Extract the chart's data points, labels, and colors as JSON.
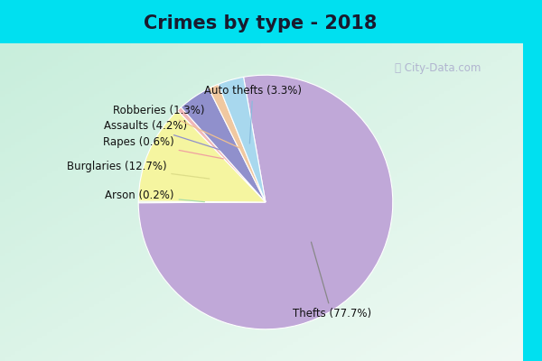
{
  "title": "Crimes by type - 2018",
  "slices": [
    {
      "label": "Thefts",
      "pct": 77.7,
      "color": "#c0a8d8"
    },
    {
      "label": "Burglaries",
      "pct": 12.7,
      "color": "#f5f5a0"
    },
    {
      "label": "Auto thefts",
      "pct": 3.3,
      "color": "#a8d8ee"
    },
    {
      "label": "Assaults",
      "pct": 4.2,
      "color": "#9090cc"
    },
    {
      "label": "Robberies",
      "pct": 1.3,
      "color": "#f0c8a0"
    },
    {
      "label": "Rapes",
      "pct": 0.6,
      "color": "#f0b8b8"
    },
    {
      "label": "Arson",
      "pct": 0.2,
      "color": "#c8e8c0"
    }
  ],
  "bg_cyan": "#00e0f0",
  "bg_mint_top": "#c8eedd",
  "bg_mint_bot": "#e8f5ee",
  "title_fontsize": 15,
  "label_fontsize": 8.5,
  "startangle": 100
}
